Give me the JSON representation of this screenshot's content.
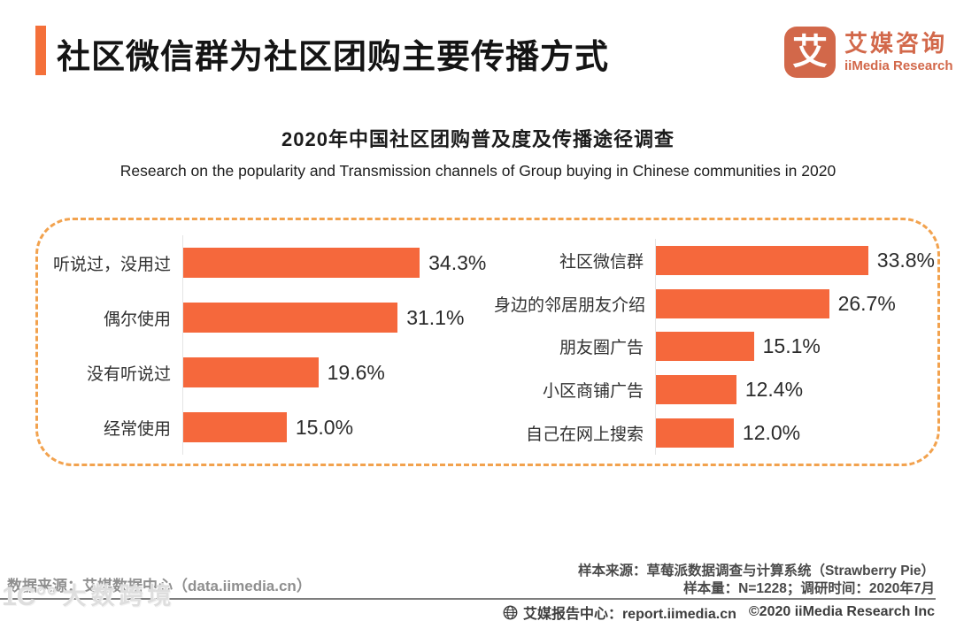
{
  "header": {
    "title": "社区微信群为社区团购主要传播方式",
    "logo": {
      "glyph": "艾",
      "name_cn": "艾媒咨询",
      "name_en": "iiMedia Research"
    }
  },
  "chart": {
    "title": "2020年中国社区团购普及度及传播途径调查",
    "subtitle": "Research on the popularity and Transmission channels of Group buying in Chinese communities in 2020"
  },
  "chart_data": [
    {
      "type": "bar",
      "orientation": "horizontal",
      "categories": [
        "听说过，没用过",
        "偶尔使用",
        "没有听说过",
        "经常使用"
      ],
      "values": [
        34.3,
        31.1,
        19.6,
        15.0
      ],
      "unit": "%",
      "xlim": [
        0,
        44.3
      ],
      "bar_color": "#F5683C",
      "grid": false,
      "legend": false
    },
    {
      "type": "bar",
      "orientation": "horizontal",
      "categories": [
        "社区微信群",
        "身边的邻居朋友介绍",
        "朋友圈广告",
        "小区商铺广告",
        "自己在网上搜索"
      ],
      "values": [
        33.8,
        26.7,
        15.1,
        12.4,
        12.0
      ],
      "unit": "%",
      "xlim": [
        0,
        43.0
      ],
      "bar_color": "#F5683C",
      "grid": false,
      "legend": false
    }
  ],
  "footer": {
    "data_source": "数据来源：艾媒数据中心（data.iimedia.cn）",
    "sample_source": "样本来源：草莓派数据调查与计算系统（Strawberry Pie）",
    "sample_info": "样本量：N=1228；调研时间：2020年7月",
    "report_center": "艾媒报告中心：report.iimedia.cn",
    "copyright": "©2020  iiMedia Research Inc"
  },
  "watermark": {
    "mark": "1C°°",
    "text": "大数跨境"
  },
  "colors": {
    "accent": "#F4703A",
    "bar": "#F5683C",
    "dashed_border": "#F2A24E",
    "logo": "#D2684A"
  }
}
